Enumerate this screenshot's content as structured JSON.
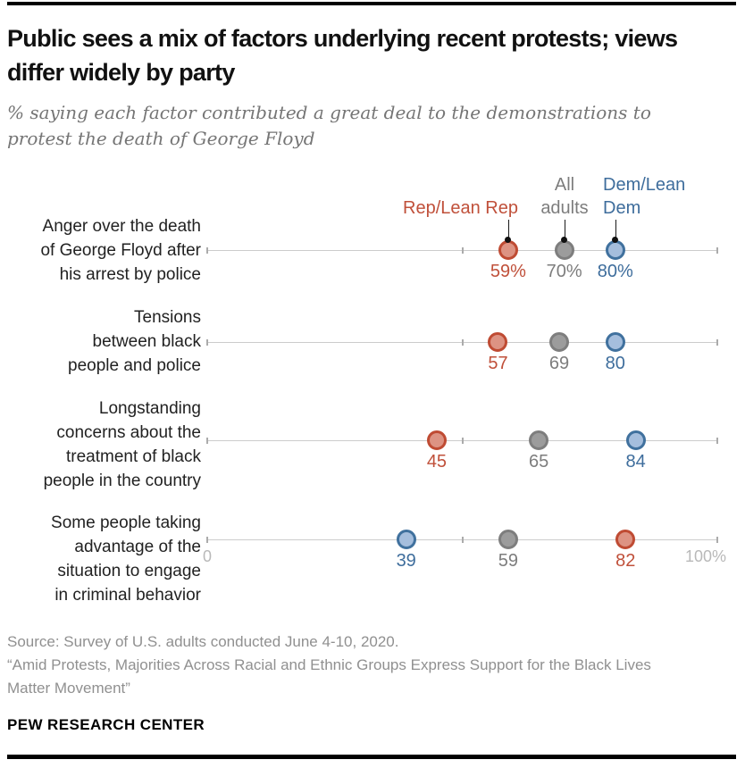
{
  "header": {
    "title": "Public sees a mix of factors underlying recent protests; views differ widely by party",
    "subtitle": "% saying each factor contributed a great deal to the demonstrations to protest the death of George Floyd"
  },
  "chart_data": {
    "type": "scatter",
    "subtype": "dot-plot",
    "title": "Public sees a mix of factors underlying recent protests; views differ widely by party",
    "xlabel": "",
    "ylabel": "",
    "axis": {
      "min": 0,
      "max": 100,
      "mid_tick": 50,
      "min_label": "0",
      "max_label": "100%"
    },
    "grid": false,
    "legend_position": "top",
    "series": [
      {
        "id": "rep",
        "name": "Rep/Lean Rep",
        "legend_lines": [
          "Rep/Lean Rep"
        ],
        "fill": "#dd9383",
        "stroke": "#bf4b33",
        "text": "#c0503a"
      },
      {
        "id": "all",
        "name": "All adults",
        "legend_lines": [
          "All",
          "adults"
        ],
        "fill": "#9c9c9c",
        "stroke": "#7e7e7e",
        "text": "#7d7d7d"
      },
      {
        "id": "dem",
        "name": "Dem/Lean Dem",
        "legend_lines": [
          "Dem/Lean",
          "Dem"
        ],
        "fill": "#a5bedd",
        "stroke": "#40719e",
        "text": "#3e6d9c"
      }
    ],
    "rows": [
      {
        "category": "Anger over the death of George Floyd after his arrest by police",
        "label_lines": [
          "Anger over the death",
          "of George Floyd after",
          "his arrest by police"
        ],
        "values": {
          "rep": 59,
          "all": 70,
          "dem": 80
        },
        "value_labels": {
          "rep": "59%",
          "all": "70%",
          "dem": "80%"
        }
      },
      {
        "category": "Tensions between black people and police",
        "label_lines": [
          "Tensions",
          "between black",
          "people and police"
        ],
        "values": {
          "rep": 57,
          "all": 69,
          "dem": 80
        },
        "value_labels": {
          "rep": "57",
          "all": "69",
          "dem": "80"
        }
      },
      {
        "category": "Longstanding concerns about the treatment of black people in the country",
        "label_lines": [
          "Longstanding",
          "concerns about the",
          "treatment of black",
          "people in the country"
        ],
        "values": {
          "rep": 45,
          "all": 65,
          "dem": 84
        },
        "value_labels": {
          "rep": "45",
          "all": "65",
          "dem": "84"
        }
      },
      {
        "category": "Some people taking advantage of the situation to engage in criminal behavior",
        "label_lines": [
          "Some people taking",
          "advantage of the",
          "situation to engage",
          "in criminal behavior"
        ],
        "values": {
          "rep": 82,
          "all": 59,
          "dem": 39
        },
        "value_labels": {
          "rep": "82",
          "all": "59",
          "dem": "39"
        }
      }
    ]
  },
  "footer": {
    "source": "Source: Survey of U.S. adults conducted June 4-10, 2020.",
    "quote": "“Amid Protests, Majorities Across Racial and Ethnic Groups Express Support for the Black Lives Matter Movement”",
    "brand": "PEW RESEARCH CENTER"
  }
}
